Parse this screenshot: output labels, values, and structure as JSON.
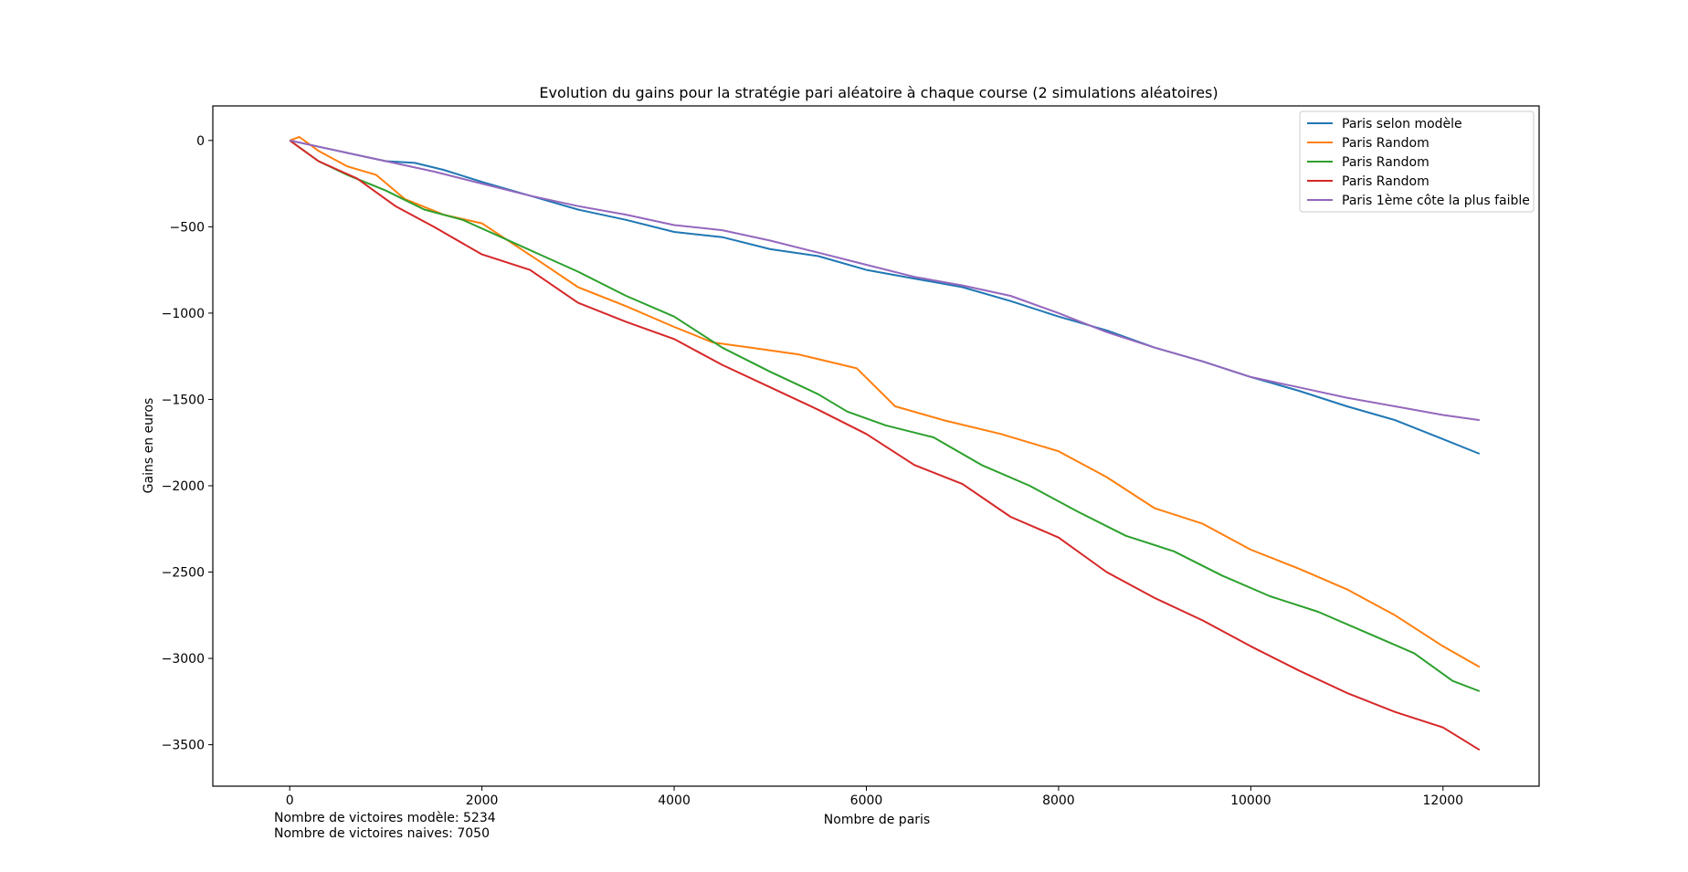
{
  "chart_data": {
    "type": "line",
    "title": "Evolution du gains pour la stratégie pari aléatoire à chaque course (2 simulations aléatoires)",
    "xlabel": "Nombre de paris",
    "ylabel": "Gains en euros",
    "xlim": [
      -800,
      13000
    ],
    "ylim": [
      -3740,
      200
    ],
    "xticks": [
      0,
      2000,
      4000,
      6000,
      8000,
      10000,
      12000
    ],
    "xtick_labels": [
      "0",
      "2000",
      "4000",
      "6000",
      "8000",
      "10000",
      "12000"
    ],
    "yticks": [
      0,
      -500,
      -1000,
      -1500,
      -2000,
      -2500,
      -3000,
      -3500
    ],
    "ytick_labels": [
      "0",
      "−500",
      "−1000",
      "−1500",
      "−2000",
      "−2500",
      "−3000",
      "−3500"
    ],
    "grid": false,
    "legend_position": "top-right",
    "series": [
      {
        "name": "Paris selon modèle",
        "color": "#1f77b4",
        "x": [
          0,
          500,
          1000,
          1300,
          1600,
          2000,
          2500,
          3000,
          3500,
          4000,
          4500,
          5000,
          5500,
          6000,
          6500,
          7000,
          7500,
          8000,
          8500,
          9000,
          9500,
          10000,
          10500,
          11000,
          11500,
          12000,
          12380
        ],
        "y": [
          0,
          -60,
          -120,
          -130,
          -170,
          -240,
          -320,
          -400,
          -460,
          -530,
          -560,
          -630,
          -670,
          -750,
          -800,
          -850,
          -930,
          -1020,
          -1100,
          -1200,
          -1280,
          -1370,
          -1450,
          -1540,
          -1620,
          -1730,
          -1815
        ]
      },
      {
        "name": "Paris Random",
        "color": "#ff7f0e",
        "x": [
          0,
          100,
          300,
          600,
          900,
          1200,
          1600,
          2000,
          2300,
          2600,
          3000,
          3500,
          4000,
          4400,
          4800,
          5300,
          5900,
          6300,
          6800,
          7400,
          8000,
          8500,
          9000,
          9500,
          10000,
          10500,
          11000,
          11500,
          12000,
          12380
        ],
        "y": [
          0,
          20,
          -60,
          -150,
          -200,
          -340,
          -430,
          -480,
          -590,
          -700,
          -850,
          -960,
          -1080,
          -1170,
          -1200,
          -1240,
          -1320,
          -1540,
          -1620,
          -1700,
          -1800,
          -1950,
          -2130,
          -2220,
          -2370,
          -2480,
          -2600,
          -2750,
          -2930,
          -3050
        ]
      },
      {
        "name": "Paris Random",
        "color": "#2ca02c",
        "x": [
          0,
          300,
          600,
          1000,
          1400,
          1800,
          2200,
          2600,
          3000,
          3500,
          4000,
          4500,
          5000,
          5500,
          5800,
          6200,
          6700,
          7200,
          7700,
          8200,
          8700,
          9200,
          9700,
          10200,
          10700,
          11200,
          11700,
          12100,
          12380
        ],
        "y": [
          0,
          -120,
          -200,
          -290,
          -400,
          -460,
          -560,
          -660,
          -760,
          -900,
          -1020,
          -1200,
          -1340,
          -1470,
          -1570,
          -1650,
          -1720,
          -1880,
          -2000,
          -2150,
          -2290,
          -2380,
          -2520,
          -2640,
          -2730,
          -2850,
          -2970,
          -3130,
          -3190
        ]
      },
      {
        "name": "Paris Random",
        "color": "#d62728",
        "x": [
          0,
          300,
          700,
          1100,
          1500,
          2000,
          2500,
          3000,
          3500,
          4000,
          4500,
          5000,
          5500,
          6000,
          6500,
          7000,
          7500,
          8000,
          8500,
          9000,
          9500,
          10000,
          10500,
          11000,
          11500,
          12000,
          12380
        ],
        "y": [
          0,
          -120,
          -220,
          -380,
          -500,
          -660,
          -750,
          -940,
          -1050,
          -1150,
          -1300,
          -1430,
          -1560,
          -1700,
          -1880,
          -1990,
          -2180,
          -2300,
          -2500,
          -2650,
          -2780,
          -2930,
          -3070,
          -3200,
          -3310,
          -3400,
          -3530
        ]
      },
      {
        "name": "Paris 1ème côte la plus faible",
        "color": "#9467bd",
        "x": [
          0,
          500,
          1000,
          1500,
          2000,
          2500,
          3000,
          3500,
          4000,
          4500,
          5000,
          5500,
          6000,
          6500,
          7000,
          7500,
          8000,
          8500,
          9000,
          9500,
          10000,
          10500,
          11000,
          11500,
          12000,
          12380
        ],
        "y": [
          0,
          -60,
          -120,
          -180,
          -250,
          -320,
          -380,
          -430,
          -490,
          -520,
          -580,
          -650,
          -720,
          -790,
          -840,
          -900,
          -1000,
          -1110,
          -1200,
          -1280,
          -1370,
          -1430,
          -1490,
          -1540,
          -1590,
          -1620
        ]
      }
    ],
    "annotations": [
      "Nombre de victoires modèle: 5234",
      "Nombre de victoires naives: 7050"
    ]
  }
}
